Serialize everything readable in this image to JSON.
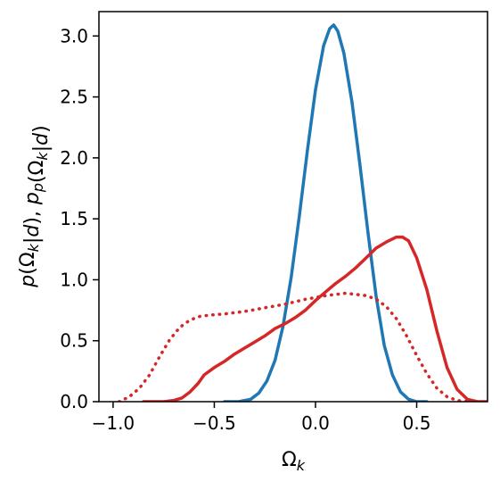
{
  "chart_data": {
    "type": "line",
    "title": "",
    "xlabel_base": "Ω",
    "xlabel_sub": "k",
    "ylabel": "p(Ω_k|d), p_p(Ω_k|d)",
    "xlim": [
      -1.07,
      0.85
    ],
    "ylim": [
      0.0,
      3.2
    ],
    "xticks": [
      -1.0,
      -0.5,
      0.0,
      0.5
    ],
    "xtick_labels": [
      "−1.0",
      "−0.5",
      "0.0",
      "0.5"
    ],
    "yticks": [
      0.0,
      0.5,
      1.0,
      1.5,
      2.0,
      2.5,
      3.0
    ],
    "ytick_labels": [
      "0.0",
      "0.5",
      "1.0",
      "1.5",
      "2.0",
      "2.5",
      "3.0"
    ],
    "grid": false,
    "legend": "none",
    "series": [
      {
        "style": "solid",
        "color": "#1f77b4",
        "x": [
          -0.45,
          -0.38,
          -0.32,
          -0.28,
          -0.24,
          -0.2,
          -0.16,
          -0.12,
          -0.08,
          -0.04,
          0.0,
          0.04,
          0.07,
          0.09,
          0.11,
          0.14,
          0.18,
          0.22,
          0.26,
          0.3,
          0.34,
          0.38,
          0.42,
          0.46,
          0.5,
          0.55
        ],
        "y": [
          0.0,
          0.0,
          0.02,
          0.07,
          0.17,
          0.34,
          0.62,
          1.02,
          1.52,
          2.06,
          2.56,
          2.92,
          3.06,
          3.09,
          3.04,
          2.86,
          2.46,
          1.94,
          1.38,
          0.86,
          0.46,
          0.22,
          0.08,
          0.02,
          0.0,
          0.0
        ]
      },
      {
        "style": "solid",
        "color": "#d62728",
        "x": [
          -0.85,
          -0.75,
          -0.7,
          -0.66,
          -0.62,
          -0.58,
          -0.55,
          -0.5,
          -0.45,
          -0.4,
          -0.35,
          -0.3,
          -0.25,
          -0.2,
          -0.15,
          -0.1,
          -0.05,
          0.0,
          0.05,
          0.1,
          0.15,
          0.2,
          0.25,
          0.3,
          0.35,
          0.4,
          0.43,
          0.46,
          0.5,
          0.55,
          0.6,
          0.65,
          0.7,
          0.75,
          0.8,
          0.85
        ],
        "y": [
          0.0,
          0.0,
          0.01,
          0.03,
          0.08,
          0.15,
          0.22,
          0.28,
          0.33,
          0.39,
          0.44,
          0.49,
          0.54,
          0.6,
          0.64,
          0.69,
          0.75,
          0.83,
          0.9,
          0.97,
          1.03,
          1.1,
          1.18,
          1.26,
          1.31,
          1.35,
          1.35,
          1.32,
          1.18,
          0.92,
          0.58,
          0.28,
          0.1,
          0.02,
          0.0,
          0.0
        ]
      },
      {
        "style": "dotted",
        "color": "#d62728",
        "x": [
          -0.97,
          -0.92,
          -0.87,
          -0.82,
          -0.77,
          -0.72,
          -0.67,
          -0.62,
          -0.57,
          -0.52,
          -0.45,
          -0.35,
          -0.25,
          -0.15,
          -0.05,
          0.05,
          0.15,
          0.25,
          0.3,
          0.35,
          0.4,
          0.45,
          0.5,
          0.55,
          0.6,
          0.65,
          0.7,
          0.75,
          0.8
        ],
        "y": [
          0.0,
          0.04,
          0.11,
          0.22,
          0.37,
          0.51,
          0.61,
          0.67,
          0.7,
          0.71,
          0.72,
          0.74,
          0.77,
          0.8,
          0.84,
          0.87,
          0.89,
          0.87,
          0.84,
          0.78,
          0.68,
          0.54,
          0.38,
          0.23,
          0.11,
          0.04,
          0.01,
          0.0,
          0.0
        ]
      }
    ]
  }
}
